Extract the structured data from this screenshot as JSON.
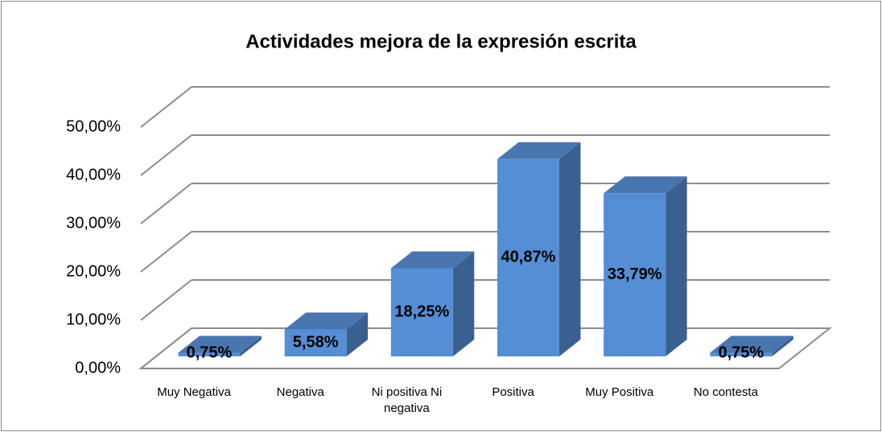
{
  "chart_data": {
    "type": "bar3d",
    "title": "Actividades mejora de la expresión escrita",
    "categories": [
      "Muy Negativa",
      "Negativa",
      "Ni positiva Ni negativa",
      "Positiva",
      "Muy Positiva",
      "No contesta"
    ],
    "values": [
      0.75,
      5.58,
      18.25,
      40.87,
      33.79,
      0.75
    ],
    "value_labels": [
      "0,75%",
      "5,58%",
      "18,25%",
      "40,87%",
      "33,79%",
      "0,75%"
    ],
    "color": "#558ed5",
    "ylim": [
      0,
      50
    ],
    "yticks": [
      {
        "value": 0,
        "label": "0,00%"
      },
      {
        "value": 10,
        "label": "10,00%"
      },
      {
        "value": 20,
        "label": "20,00%"
      },
      {
        "value": 30,
        "label": "30,00%"
      },
      {
        "value": 40,
        "label": "40,00%"
      },
      {
        "value": 50,
        "label": "50,00%"
      }
    ],
    "grid": true
  }
}
